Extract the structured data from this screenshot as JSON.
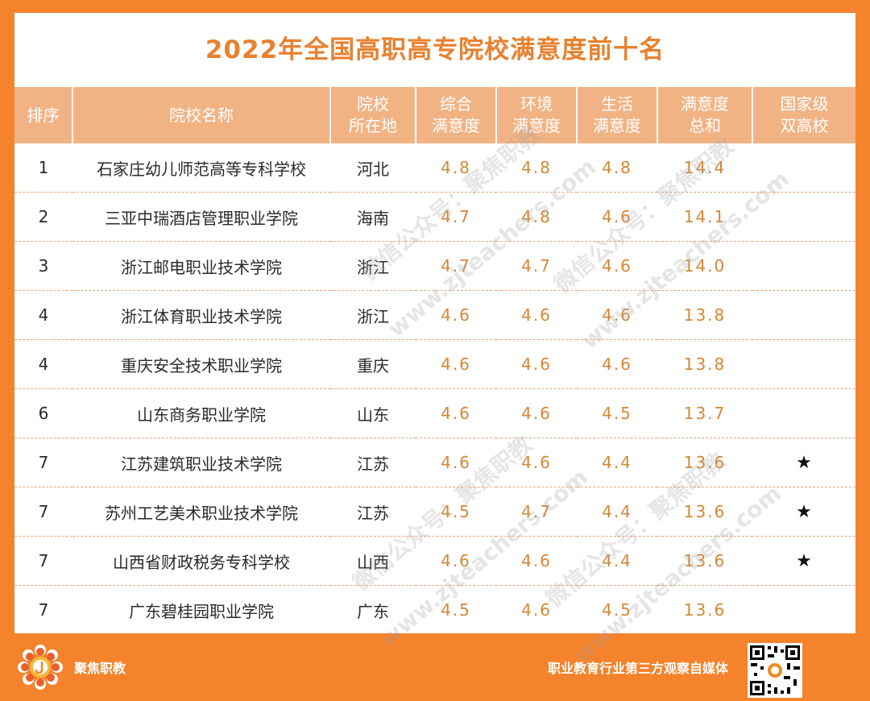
{
  "title": "2022年全国高职高专院校满意度前十名",
  "headers": [
    [
      "排序"
    ],
    [
      "院校名称"
    ],
    [
      "院校",
      "所在地"
    ],
    [
      "综合",
      "满意度"
    ],
    [
      "环境",
      "满意度"
    ],
    [
      "生活",
      "满意度"
    ],
    [
      "满意度",
      "总和"
    ],
    [
      "国家级",
      "双高校"
    ]
  ],
  "rows": [
    {
      "rank": "1",
      "name": "石家庄幼儿师范高等专科学校",
      "province": "河北",
      "overall": "4.8",
      "environment": "4.8",
      "life": "4.8",
      "total": "14.4",
      "double_high": ""
    },
    {
      "rank": "2",
      "name": "三亚中瑞酒店管理职业学院",
      "province": "海南",
      "overall": "4.7",
      "environment": "4.8",
      "life": "4.6",
      "total": "14.1",
      "double_high": ""
    },
    {
      "rank": "3",
      "name": "浙江邮电职业技术学院",
      "province": "浙江",
      "overall": "4.7",
      "environment": "4.7",
      "life": "4.6",
      "total": "14.0",
      "double_high": ""
    },
    {
      "rank": "4",
      "name": "浙江体育职业技术学院",
      "province": "浙江",
      "overall": "4.6",
      "environment": "4.6",
      "life": "4.6",
      "total": "13.8",
      "double_high": ""
    },
    {
      "rank": "4",
      "name": "重庆安全技术职业学院",
      "province": "重庆",
      "overall": "4.6",
      "environment": "4.6",
      "life": "4.6",
      "total": "13.8",
      "double_high": ""
    },
    {
      "rank": "6",
      "name": "山东商务职业学院",
      "province": "山东",
      "overall": "4.6",
      "environment": "4.6",
      "life": "4.5",
      "total": "13.7",
      "double_high": ""
    },
    {
      "rank": "7",
      "name": "江苏建筑职业技术学院",
      "province": "江苏",
      "overall": "4.6",
      "environment": "4.6",
      "life": "4.4",
      "total": "13.6",
      "double_high": "★"
    },
    {
      "rank": "7",
      "name": "苏州工艺美术职业技术学院",
      "province": "江苏",
      "overall": "4.5",
      "environment": "4.7",
      "life": "4.4",
      "total": "13.6",
      "double_high": "★"
    },
    {
      "rank": "7",
      "name": "山西省财政税务专科学校",
      "province": "山西",
      "overall": "4.6",
      "environment": "4.6",
      "life": "4.4",
      "total": "13.6",
      "double_high": "★"
    },
    {
      "rank": "7",
      "name": "广东碧桂园职业学院",
      "province": "广东",
      "overall": "4.5",
      "environment": "4.6",
      "life": "4.5",
      "total": "13.6",
      "double_high": ""
    }
  ],
  "watermarks": {
    "wechat": "微信公众号：聚焦职教",
    "site": "www.zjteachers.com"
  },
  "footer": {
    "brand": "聚焦职教",
    "slogan": "职业教育行业第三方观察自媒体"
  },
  "colors": {
    "frame": "#f4832c",
    "header_bg": "#f1b384",
    "title": "#e8812f",
    "number": "#d58735"
  }
}
